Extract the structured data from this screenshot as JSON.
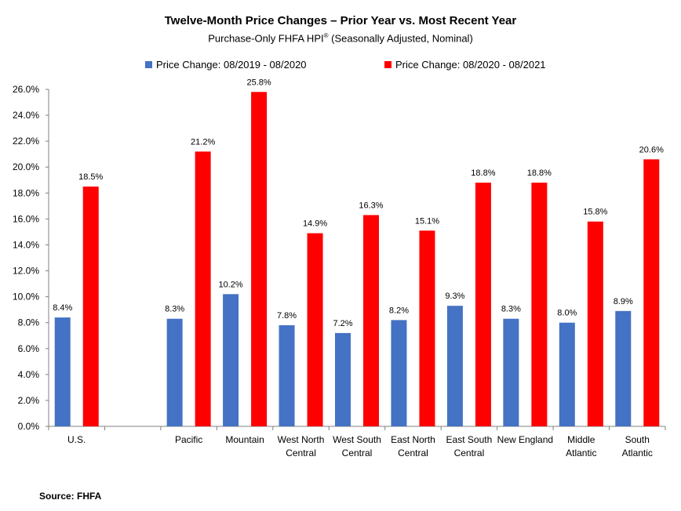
{
  "chart_data": {
    "type": "bar",
    "title": "Twelve-Month Price Changes – Prior Year vs. Most Recent Year",
    "subtitle_main": "Purchase-Only FHFA HPI",
    "subtitle_sup": "®",
    "subtitle_tail": " (Seasonally Adjusted, Nominal)",
    "categories": [
      [
        "U.S."
      ],
      [
        ""
      ],
      [
        "Pacific"
      ],
      [
        "Mountain"
      ],
      [
        "West North",
        "Central"
      ],
      [
        "West South",
        "Central"
      ],
      [
        "East North",
        "Central"
      ],
      [
        "East South",
        "Central"
      ],
      [
        "New England"
      ],
      [
        "Middle",
        "Atlantic"
      ],
      [
        "South",
        "Atlantic"
      ]
    ],
    "series": [
      {
        "name": "Price Change:  08/2019 - 08/2020",
        "color": "#4472C4",
        "values": [
          8.4,
          null,
          8.3,
          10.2,
          7.8,
          7.2,
          8.2,
          9.3,
          8.3,
          8.0,
          8.9
        ],
        "labels": [
          "8.4%",
          "",
          "8.3%",
          "10.2%",
          "7.8%",
          "7.2%",
          "8.2%",
          "9.3%",
          "8.3%",
          "8.0%",
          "8.9%"
        ]
      },
      {
        "name": "Price Change:  08/2020 - 08/2021",
        "color": "#FF0000",
        "values": [
          18.5,
          null,
          21.2,
          25.8,
          14.9,
          16.3,
          15.1,
          18.8,
          18.8,
          15.8,
          20.6
        ],
        "labels": [
          "18.5%",
          "",
          "21.2%",
          "25.8%",
          "14.9%",
          "16.3%",
          "15.1%",
          "18.8%",
          "18.8%",
          "15.8%",
          "20.6%"
        ]
      }
    ],
    "ylim": [
      0,
      26
    ],
    "yticks": [
      0,
      2,
      4,
      6,
      8,
      10,
      12,
      14,
      16,
      18,
      20,
      22,
      24,
      26
    ],
    "ytick_labels": [
      "0.0%",
      "2.0%",
      "4.0%",
      "6.0%",
      "8.0%",
      "10.0%",
      "12.0%",
      "14.0%",
      "16.0%",
      "18.0%",
      "20.0%",
      "22.0%",
      "24.0%",
      "26.0%"
    ],
    "grid": false,
    "legend_position": "top"
  },
  "source": "Source: FHFA"
}
